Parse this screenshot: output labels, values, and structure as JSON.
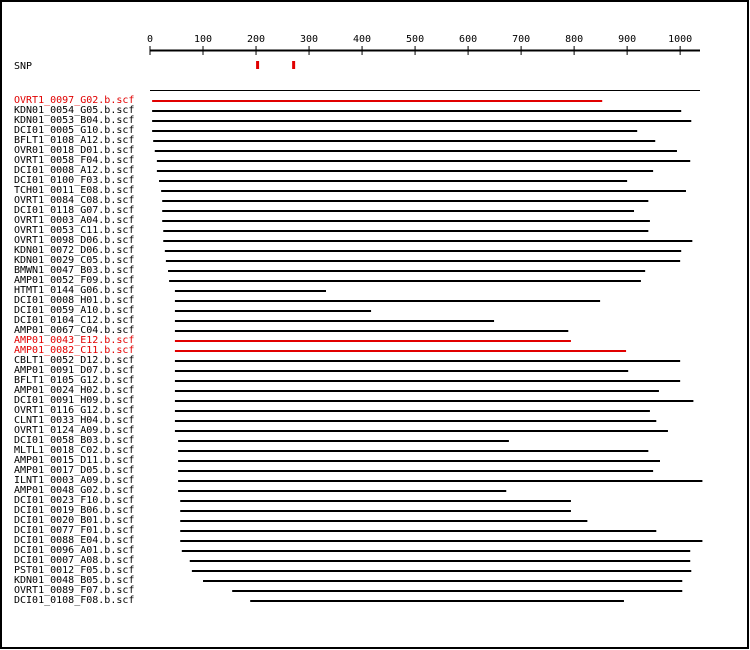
{
  "chart_data": {
    "type": "alignment",
    "xlim": [
      0,
      1045
    ],
    "xticks": [
      0,
      100,
      200,
      300,
      400,
      500,
      600,
      700,
      800,
      900,
      1000
    ],
    "snp_label": "SNP",
    "snp_color": "#e00000",
    "snps": [
      202,
      270
    ],
    "default_color": "#000000",
    "reads": [
      {
        "name": "OVRT1_0097_G02.b.scf",
        "start": 4,
        "end": 853,
        "color": "#e00000"
      },
      {
        "name": "KDN01_0054_G05.b.scf",
        "start": 4,
        "end": 1002
      },
      {
        "name": "KDN01_0053_B04.b.scf",
        "start": 4,
        "end": 1021
      },
      {
        "name": "DCI01_0005_G10.b.scf",
        "start": 4,
        "end": 919
      },
      {
        "name": "BFLT1_0108_A12.b.scf",
        "start": 6,
        "end": 953
      },
      {
        "name": "OVR01_0018_D01.b.scf",
        "start": 9,
        "end": 994
      },
      {
        "name": "OVRT1_0058_F04.b.scf",
        "start": 13,
        "end": 1019
      },
      {
        "name": "DCI01_0008_A12.b.scf",
        "start": 13,
        "end": 949
      },
      {
        "name": "DCI01_0100_F03.b.scf",
        "start": 17,
        "end": 900
      },
      {
        "name": "TCH01_0011_E08.b.scf",
        "start": 21,
        "end": 1011
      },
      {
        "name": "OVRT1_0084_C08.b.scf",
        "start": 23,
        "end": 940
      },
      {
        "name": "DCI01_0118_G07.b.scf",
        "start": 23,
        "end": 913
      },
      {
        "name": "OVRT1_0003_A04.b.scf",
        "start": 23,
        "end": 943
      },
      {
        "name": "OVRT1_0053_C11.b.scf",
        "start": 25,
        "end": 940
      },
      {
        "name": "OVRT1_0098_D06.b.scf",
        "start": 25,
        "end": 1023
      },
      {
        "name": "KDN01_0072_D06.b.scf",
        "start": 28,
        "end": 1002
      },
      {
        "name": "KDN01_0029_C05.b.scf",
        "start": 30,
        "end": 1000
      },
      {
        "name": "BMWN1_0047_B03.b.scf",
        "start": 34,
        "end": 934
      },
      {
        "name": "AMP01_0052_F09.b.scf",
        "start": 36,
        "end": 926
      },
      {
        "name": "HTMT1_0144_G06.b.scf",
        "start": 47,
        "end": 332
      },
      {
        "name": "DCI01_0008_H01.b.scf",
        "start": 47,
        "end": 849
      },
      {
        "name": "DCI01_0059_A10.b.scf",
        "start": 47,
        "end": 417
      },
      {
        "name": "DCI01_0104_C12.b.scf",
        "start": 47,
        "end": 649
      },
      {
        "name": "AMP01_0067_C04.b.scf",
        "start": 47,
        "end": 789
      },
      {
        "name": "AMP01_0043_E12.b.scf",
        "start": 47,
        "end": 794,
        "color": "#e00000"
      },
      {
        "name": "AMP01_0082_C11.b.scf",
        "start": 47,
        "end": 898,
        "color": "#e00000"
      },
      {
        "name": "CBLT1_0052_D12.b.scf",
        "start": 47,
        "end": 1000
      },
      {
        "name": "AMP01_0091_D07.b.scf",
        "start": 47,
        "end": 902
      },
      {
        "name": "BFLT1_0105_G12.b.scf",
        "start": 47,
        "end": 1000
      },
      {
        "name": "AMP01_0024_H02.b.scf",
        "start": 47,
        "end": 960
      },
      {
        "name": "DCI01_0091_H09.b.scf",
        "start": 47,
        "end": 1025
      },
      {
        "name": "OVRT1_0116_G12.b.scf",
        "start": 47,
        "end": 943
      },
      {
        "name": "CLNT1_0033_H04.b.scf",
        "start": 47,
        "end": 955
      },
      {
        "name": "OVRT1_0124_A09.b.scf",
        "start": 47,
        "end": 977
      },
      {
        "name": "DCI01_0058_B03.b.scf",
        "start": 53,
        "end": 677
      },
      {
        "name": "MLTL1_0018_C02.b.scf",
        "start": 53,
        "end": 940
      },
      {
        "name": "AMP01_0015_D11.b.scf",
        "start": 53,
        "end": 962
      },
      {
        "name": "AMP01_0017_D05.b.scf",
        "start": 53,
        "end": 949
      },
      {
        "name": "ILNT1_0003_A09.b.scf",
        "start": 53,
        "end": 1042
      },
      {
        "name": "AMP01_0048_G02.b.scf",
        "start": 53,
        "end": 672
      },
      {
        "name": "DCI01_0023_F10.b.scf",
        "start": 57,
        "end": 794
      },
      {
        "name": "DCI01_0019_B06.b.scf",
        "start": 57,
        "end": 794
      },
      {
        "name": "DCI01_0020_B01.b.scf",
        "start": 57,
        "end": 825
      },
      {
        "name": "DCI01_0077_F01.b.scf",
        "start": 57,
        "end": 955
      },
      {
        "name": "DCI01_0088_E04.b.scf",
        "start": 57,
        "end": 1042
      },
      {
        "name": "DCI01_0096_A01.b.scf",
        "start": 60,
        "end": 1019
      },
      {
        "name": "DCI01_0007_A08.b.scf",
        "start": 75,
        "end": 1019
      },
      {
        "name": "PST01_0012_F05.b.scf",
        "start": 79,
        "end": 1021
      },
      {
        "name": "KDN01_0048_B05.b.scf",
        "start": 100,
        "end": 1004
      },
      {
        "name": "OVRT1_0089_F07.b.scf",
        "start": 155,
        "end": 1004
      },
      {
        "name": "DCI01_0108_F08.b.scf",
        "start": 189,
        "end": 894
      }
    ]
  }
}
